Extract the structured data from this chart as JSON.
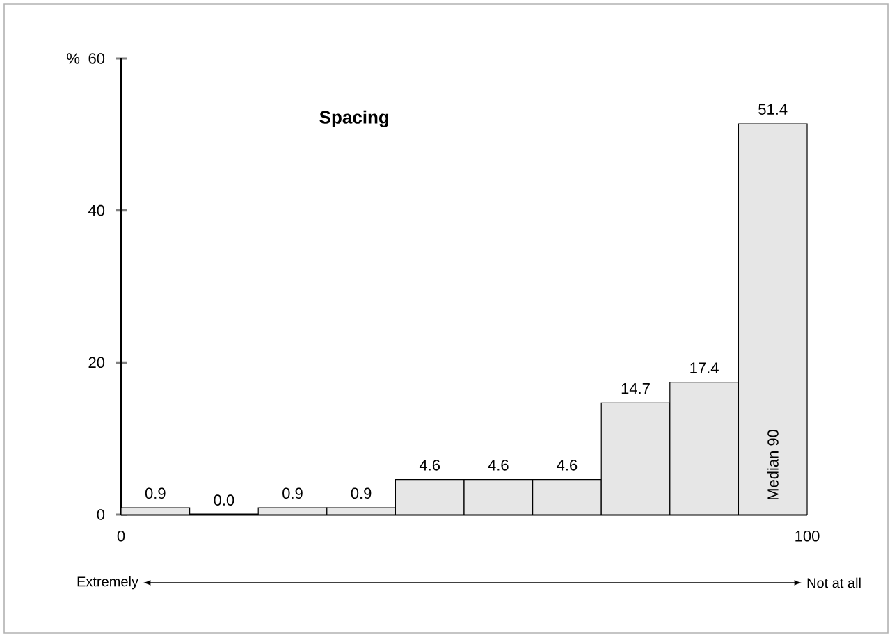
{
  "chart_data": {
    "type": "histogram",
    "title": "Spacing",
    "ylabel": "%",
    "bins": [
      0,
      10,
      20,
      30,
      40,
      50,
      60,
      70,
      80,
      90,
      100
    ],
    "values": [
      0.9,
      0.0,
      0.9,
      0.9,
      4.6,
      4.6,
      4.6,
      14.7,
      17.4,
      51.4
    ],
    "value_labels": [
      "0.9",
      "0.0",
      "0.9",
      "0.9",
      "4.6",
      "4.6",
      "4.6",
      "14.7",
      "17.4",
      "51.4"
    ],
    "color": "#e6e6e6",
    "xlim": [
      0,
      100
    ],
    "ylim": [
      0,
      60
    ],
    "xticks": [
      0,
      100
    ],
    "yticks": [
      0,
      20,
      40,
      60
    ],
    "annotations": [
      "Median 90",
      "Extremely",
      "Not at all"
    ]
  }
}
